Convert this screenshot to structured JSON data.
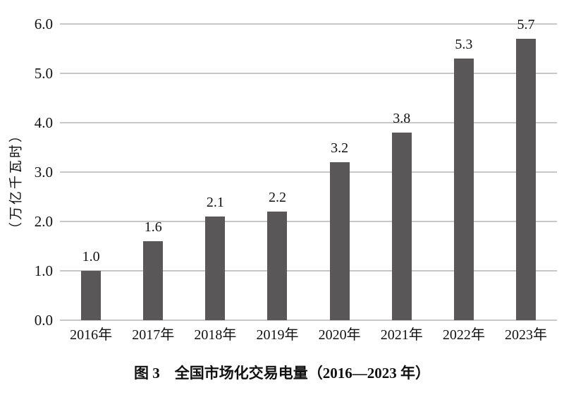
{
  "chart_data": {
    "type": "bar",
    "title": "图 3　全国市场化交易电量（2016—2023 年）",
    "ylabel": "（万亿千瓦时）",
    "xlabel": "",
    "categories": [
      "2016年",
      "2017年",
      "2018年",
      "2019年",
      "2020年",
      "2021年",
      "2022年",
      "2023年"
    ],
    "values": [
      1.0,
      1.6,
      2.1,
      2.2,
      3.2,
      3.8,
      5.3,
      5.7
    ],
    "value_labels": [
      "1.0",
      "1.6",
      "2.1",
      "2.2",
      "3.2",
      "3.8",
      "5.3",
      "5.7"
    ],
    "yticks": [
      "0.0",
      "1.0",
      "2.0",
      "3.0",
      "4.0",
      "5.0",
      "6.0"
    ],
    "ylim": [
      0,
      6
    ],
    "ytick_interval": 1.0,
    "grid": true,
    "legend": false,
    "bar_color": "#595757",
    "gridline_color": "#c8c8c8",
    "text_color": "#111111",
    "background_color": "#ffffff"
  }
}
